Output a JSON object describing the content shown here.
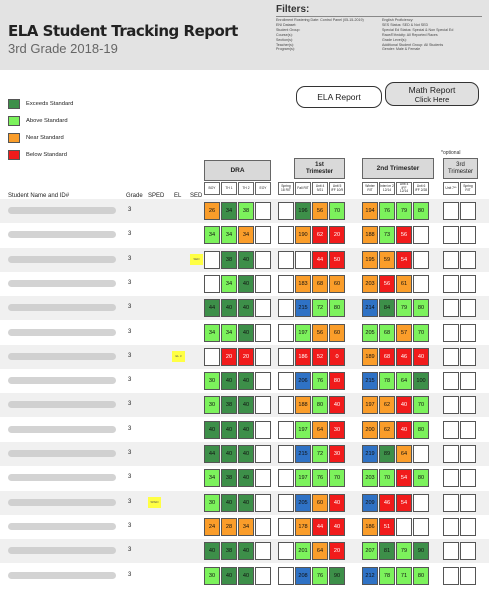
{
  "report": {
    "title": "ELA Student Tracking Report",
    "subtitle": "3rd Grade 2018-19"
  },
  "filters": {
    "title": "Filters:",
    "left": [
      "Enrollment Rostering Date: Control Panel (05-15-2019)",
      "ENI Dataset:",
      "Student Group:",
      "Course(s):",
      "Section(s):",
      "Teacher(s):",
      "Program(s):"
    ],
    "right": [
      "English Proficiency:",
      "SES Status: SED & Not SED",
      "Special Ed Status: Special & Non Special Ed",
      "Race/Ethnicity: All Reported Races",
      "Grade Level(s):",
      "Additional Student Group: All Students",
      "Gender: Male & Female"
    ]
  },
  "buttons": {
    "ela": "ELA Report",
    "math_line1": "Math Report",
    "math_line2": "Click Here"
  },
  "legend": {
    "exceeds": "Exceeds Standard",
    "above": "Above Standard",
    "near": "Near Standard",
    "below": "Below Standard",
    "colors": {
      "exceeds": "#3d8f49",
      "above": "#7cf25c",
      "near": "#fa9d2a",
      "below": "#f11b1b",
      "fourth": "#2f72c5"
    }
  },
  "columns": {
    "student": "Student Name and ID#",
    "grade": "Grade",
    "sped": "SPED",
    "el": "EL",
    "sed": "SED",
    "optional": "*optional"
  },
  "groups": {
    "dra": "DRA",
    "t1_line1": "1st",
    "t1_line2": "Trimester",
    "t2": "2nd Trimester",
    "t3_line1": "3rd",
    "t3_line2": "Trimester"
  },
  "subheaders": {
    "dra": [
      "BOY",
      "TH 1",
      "TH 2",
      "EOY"
    ],
    "t1": [
      "Spring 18 RIT",
      "Fall RIT",
      "Unit 4 9/21",
      "Unit 5 IFF 10/9"
    ],
    "t2": [
      "Winter RIT",
      "Interi m 2 12/14",
      "Unit 4 IFF 12/14",
      "Unit 6 IFF 2/28"
    ],
    "t3": [
      "Unit 7**",
      "Spring RIT"
    ]
  },
  "rows": [
    {
      "grade": "3",
      "flag": "",
      "dra": [
        [
          "26",
          "or"
        ],
        [
          "34",
          "dg"
        ],
        [
          "38",
          "lg"
        ],
        [
          "",
          "wh"
        ]
      ],
      "t1": [
        [
          "",
          "wh"
        ],
        [
          "196",
          "dg"
        ],
        [
          "56",
          "or"
        ],
        [
          "70",
          "lg"
        ]
      ],
      "t2": [
        [
          "194",
          "or"
        ],
        [
          "76",
          "lg"
        ],
        [
          "79",
          "lg"
        ],
        [
          "80",
          "lg"
        ]
      ],
      "t3": [
        [
          "",
          "wh"
        ],
        [
          "",
          "wh"
        ]
      ]
    },
    {
      "grade": "3",
      "flag": "",
      "dra": [
        [
          "34",
          "lg"
        ],
        [
          "34",
          "lg"
        ],
        [
          "34",
          "or"
        ],
        [
          "",
          "wh"
        ]
      ],
      "t1": [
        [
          "",
          "wh"
        ],
        [
          "190",
          "or"
        ],
        [
          "62",
          "rd"
        ],
        [
          "20",
          "rd"
        ]
      ],
      "t2": [
        [
          "188",
          "or"
        ],
        [
          "73",
          "lg"
        ],
        [
          "56",
          "rd"
        ],
        [
          "",
          "wh"
        ]
      ],
      "t3": [
        [
          "",
          "wh"
        ],
        [
          "",
          "wh"
        ]
      ]
    },
    {
      "grade": "3",
      "flag": "SED",
      "dra": [
        [
          "",
          "wh"
        ],
        [
          "38",
          "dg"
        ],
        [
          "40",
          "dg"
        ],
        [
          "",
          "wh"
        ]
      ],
      "t1": [
        [
          "",
          "wh"
        ],
        [
          "",
          "wh"
        ],
        [
          "44",
          "rd"
        ],
        [
          "50",
          "rd"
        ]
      ],
      "t2": [
        [
          "195",
          "or"
        ],
        [
          "59",
          "or"
        ],
        [
          "54",
          "rd"
        ],
        [
          "",
          "wh"
        ]
      ],
      "t3": [
        [
          "",
          "wh"
        ],
        [
          "",
          "wh"
        ]
      ]
    },
    {
      "grade": "3",
      "flag": "",
      "dra": [
        [
          "",
          "wh"
        ],
        [
          "34",
          "lg"
        ],
        [
          "40",
          "dg"
        ],
        [
          "",
          "wh"
        ]
      ],
      "t1": [
        [
          "",
          "wh"
        ],
        [
          "183",
          "or"
        ],
        [
          "68",
          "or"
        ],
        [
          "60",
          "or"
        ]
      ],
      "t2": [
        [
          "203",
          "or"
        ],
        [
          "56",
          "rd"
        ],
        [
          "61",
          "or"
        ],
        [
          "",
          "wh"
        ]
      ],
      "t3": [
        [
          "",
          "wh"
        ],
        [
          "",
          "wh"
        ]
      ]
    },
    {
      "grade": "3",
      "flag": "",
      "dra": [
        [
          "44",
          "dg"
        ],
        [
          "40",
          "dg"
        ],
        [
          "40",
          "dg"
        ],
        [
          "",
          "wh"
        ]
      ],
      "t1": [
        [
          "",
          "wh"
        ],
        [
          "215",
          "bl"
        ],
        [
          "72",
          "lg"
        ],
        [
          "80",
          "lg"
        ]
      ],
      "t2": [
        [
          "214",
          "bl"
        ],
        [
          "84",
          "dg"
        ],
        [
          "79",
          "lg"
        ],
        [
          "80",
          "lg"
        ]
      ],
      "t3": [
        [
          "",
          "wh"
        ],
        [
          "",
          "wh"
        ]
      ]
    },
    {
      "grade": "3",
      "flag": "",
      "dra": [
        [
          "34",
          "lg"
        ],
        [
          "34",
          "lg"
        ],
        [
          "40",
          "dg"
        ],
        [
          "",
          "wh"
        ]
      ],
      "t1": [
        [
          "",
          "wh"
        ],
        [
          "197",
          "lg"
        ],
        [
          "56",
          "or"
        ],
        [
          "60",
          "or"
        ]
      ],
      "t2": [
        [
          "205",
          "lg"
        ],
        [
          "68",
          "lg"
        ],
        [
          "57",
          "or"
        ],
        [
          "70",
          "lg"
        ]
      ],
      "t3": [
        [
          "",
          "wh"
        ],
        [
          "",
          "wh"
        ]
      ]
    },
    {
      "grade": "3",
      "flag": "EL 3",
      "dra": [
        [
          "",
          "wh"
        ],
        [
          "20",
          "rd"
        ],
        [
          "20",
          "rd"
        ],
        [
          "",
          "wh"
        ]
      ],
      "t1": [
        [
          "",
          "wh"
        ],
        [
          "186",
          "rd"
        ],
        [
          "52",
          "rd"
        ],
        [
          "0",
          "rd"
        ]
      ],
      "t2": [
        [
          "189",
          "or"
        ],
        [
          "68",
          "rd"
        ],
        [
          "46",
          "rd"
        ],
        [
          "40",
          "rd"
        ]
      ],
      "t3": [
        [
          "",
          "wh"
        ],
        [
          "",
          "wh"
        ]
      ]
    },
    {
      "grade": "3",
      "flag": "",
      "dra": [
        [
          "30",
          "lg"
        ],
        [
          "40",
          "dg"
        ],
        [
          "40",
          "dg"
        ],
        [
          "",
          "wh"
        ]
      ],
      "t1": [
        [
          "",
          "wh"
        ],
        [
          "206",
          "bl"
        ],
        [
          "76",
          "lg"
        ],
        [
          "80",
          "rd"
        ]
      ],
      "t2": [
        [
          "215",
          "bl"
        ],
        [
          "78",
          "lg"
        ],
        [
          "64",
          "lg"
        ],
        [
          "100",
          "dg"
        ]
      ],
      "t3": [
        [
          "",
          "wh"
        ],
        [
          "",
          "wh"
        ]
      ]
    },
    {
      "grade": "3",
      "flag": "",
      "dra": [
        [
          "30",
          "lg"
        ],
        [
          "38",
          "dg"
        ],
        [
          "40",
          "dg"
        ],
        [
          "",
          "wh"
        ]
      ],
      "t1": [
        [
          "",
          "wh"
        ],
        [
          "188",
          "or"
        ],
        [
          "80",
          "lg"
        ],
        [
          "40",
          "rd"
        ]
      ],
      "t2": [
        [
          "197",
          "or"
        ],
        [
          "62",
          "or"
        ],
        [
          "40",
          "rd"
        ],
        [
          "70",
          "lg"
        ]
      ],
      "t3": [
        [
          "",
          "wh"
        ],
        [
          "",
          "wh"
        ]
      ]
    },
    {
      "grade": "3",
      "flag": "",
      "dra": [
        [
          "40",
          "dg"
        ],
        [
          "40",
          "dg"
        ],
        [
          "40",
          "dg"
        ],
        [
          "",
          "wh"
        ]
      ],
      "t1": [
        [
          "",
          "wh"
        ],
        [
          "197",
          "lg"
        ],
        [
          "64",
          "or"
        ],
        [
          "30",
          "rd"
        ]
      ],
      "t2": [
        [
          "200",
          "or"
        ],
        [
          "62",
          "or"
        ],
        [
          "40",
          "rd"
        ],
        [
          "80",
          "lg"
        ]
      ],
      "t3": [
        [
          "",
          "wh"
        ],
        [
          "",
          "wh"
        ]
      ]
    },
    {
      "grade": "3",
      "flag": "",
      "dra": [
        [
          "44",
          "dg"
        ],
        [
          "40",
          "dg"
        ],
        [
          "40",
          "dg"
        ],
        [
          "",
          "wh"
        ]
      ],
      "t1": [
        [
          "",
          "wh"
        ],
        [
          "215",
          "bl"
        ],
        [
          "72",
          "lg"
        ],
        [
          "30",
          "rd"
        ]
      ],
      "t2": [
        [
          "219",
          "bl"
        ],
        [
          "89",
          "dg"
        ],
        [
          "64",
          "or"
        ],
        [
          "",
          "wh"
        ]
      ],
      "t3": [
        [
          "",
          "wh"
        ],
        [
          "",
          "wh"
        ]
      ]
    },
    {
      "grade": "3",
      "flag": "",
      "dra": [
        [
          "34",
          "lg"
        ],
        [
          "38",
          "dg"
        ],
        [
          "40",
          "dg"
        ],
        [
          "",
          "wh"
        ]
      ],
      "t1": [
        [
          "",
          "wh"
        ],
        [
          "197",
          "lg"
        ],
        [
          "76",
          "lg"
        ],
        [
          "70",
          "lg"
        ]
      ],
      "t2": [
        [
          "203",
          "lg"
        ],
        [
          "70",
          "lg"
        ],
        [
          "54",
          "rd"
        ],
        [
          "80",
          "lg"
        ]
      ],
      "t3": [
        [
          "",
          "wh"
        ],
        [
          "",
          "wh"
        ]
      ]
    },
    {
      "grade": "3",
      "flag": "SPED",
      "dra": [
        [
          "30",
          "lg"
        ],
        [
          "40",
          "dg"
        ],
        [
          "40",
          "dg"
        ],
        [
          "",
          "wh"
        ]
      ],
      "t1": [
        [
          "",
          "wh"
        ],
        [
          "205",
          "bl"
        ],
        [
          "60",
          "or"
        ],
        [
          "40",
          "rd"
        ]
      ],
      "t2": [
        [
          "209",
          "bl"
        ],
        [
          "46",
          "rd"
        ],
        [
          "54",
          "rd"
        ],
        [
          "",
          "wh"
        ]
      ],
      "t3": [
        [
          "",
          "wh"
        ],
        [
          "",
          "wh"
        ]
      ]
    },
    {
      "grade": "3",
      "flag": "",
      "dra": [
        [
          "24",
          "or"
        ],
        [
          "28",
          "or"
        ],
        [
          "34",
          "or"
        ],
        [
          "",
          "wh"
        ]
      ],
      "t1": [
        [
          "",
          "wh"
        ],
        [
          "178",
          "or"
        ],
        [
          "44",
          "rd"
        ],
        [
          "40",
          "rd"
        ]
      ],
      "t2": [
        [
          "186",
          "or"
        ],
        [
          "51",
          "rd"
        ],
        [
          "",
          "wh"
        ],
        [
          "",
          "wh"
        ]
      ],
      "t3": [
        [
          "",
          "wh"
        ],
        [
          "",
          "wh"
        ]
      ]
    },
    {
      "grade": "3",
      "flag": "",
      "dra": [
        [
          "40",
          "dg"
        ],
        [
          "38",
          "dg"
        ],
        [
          "40",
          "dg"
        ],
        [
          "",
          "wh"
        ]
      ],
      "t1": [
        [
          "",
          "wh"
        ],
        [
          "201",
          "lg"
        ],
        [
          "64",
          "or"
        ],
        [
          "20",
          "rd"
        ]
      ],
      "t2": [
        [
          "207",
          "lg"
        ],
        [
          "81",
          "dg"
        ],
        [
          "79",
          "lg"
        ],
        [
          "90",
          "dg"
        ]
      ],
      "t3": [
        [
          "",
          "wh"
        ],
        [
          "",
          "wh"
        ]
      ]
    },
    {
      "grade": "3",
      "flag": "",
      "dra": [
        [
          "30",
          "lg"
        ],
        [
          "40",
          "dg"
        ],
        [
          "40",
          "dg"
        ],
        [
          "",
          "wh"
        ]
      ],
      "t1": [
        [
          "",
          "wh"
        ],
        [
          "208",
          "bl"
        ],
        [
          "76",
          "lg"
        ],
        [
          "90",
          "dg"
        ]
      ],
      "t2": [
        [
          "212",
          "bl"
        ],
        [
          "78",
          "lg"
        ],
        [
          "71",
          "lg"
        ],
        [
          "80",
          "lg"
        ]
      ],
      "t3": [
        [
          "",
          "wh"
        ],
        [
          "",
          "wh"
        ]
      ]
    }
  ]
}
